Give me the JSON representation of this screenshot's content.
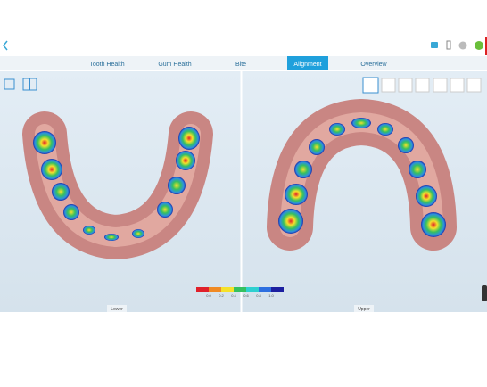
{
  "tabs": [
    {
      "label": "Tooth Health",
      "active": false
    },
    {
      "label": "Gum Health",
      "active": false
    },
    {
      "label": "Bite",
      "active": false
    },
    {
      "label": "Alignment",
      "active": true
    },
    {
      "label": "Overview",
      "active": false
    }
  ],
  "legend": {
    "labels": [
      "0.0",
      "0.2",
      "0.4",
      "0.6",
      "0.8",
      "1.0"
    ]
  },
  "views": {
    "lower": {
      "label": "Lower"
    },
    "upper": {
      "label": "Upper"
    }
  }
}
